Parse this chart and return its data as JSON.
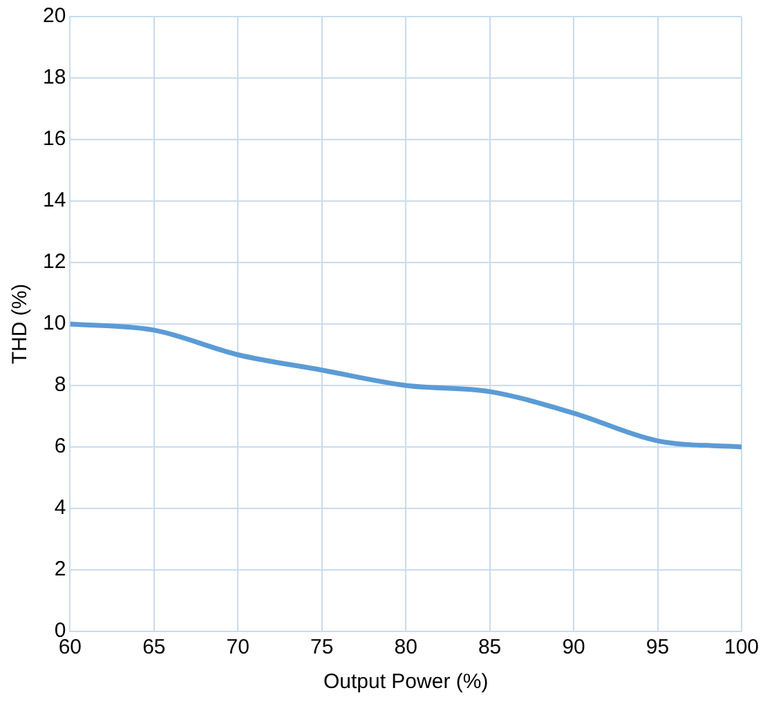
{
  "chart_data": {
    "type": "line",
    "xlabel": "Output Power (%)",
    "ylabel": "THD (%)",
    "x": [
      60,
      65,
      70,
      75,
      80,
      85,
      90,
      95,
      100
    ],
    "series": [
      {
        "color": "#5b9bd5",
        "values": [
          10,
          9.8,
          9,
          8.5,
          8,
          7.8,
          7.1,
          6.2,
          6
        ]
      }
    ],
    "xlim": [
      60,
      100
    ],
    "xticks": [
      60,
      65,
      70,
      75,
      80,
      85,
      90,
      95,
      100
    ],
    "ylim": [
      0,
      20
    ],
    "yticks": [
      0,
      2,
      4,
      6,
      8,
      10,
      12,
      14,
      16,
      18,
      20
    ],
    "grid": true,
    "legend": false,
    "marker": "none",
    "line_style": "solid"
  }
}
